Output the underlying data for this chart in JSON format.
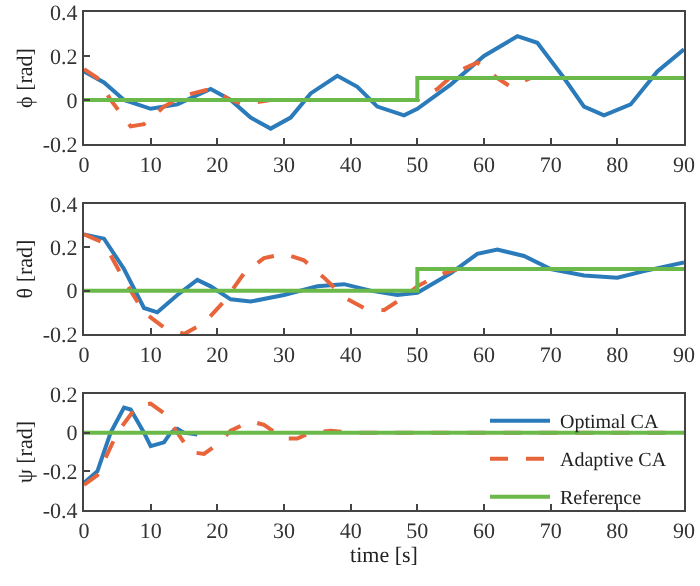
{
  "chart_data": [
    {
      "type": "line",
      "ylabel": "ϕ [rad]",
      "xlim": [
        0,
        90
      ],
      "xticks": [
        0,
        10,
        20,
        30,
        40,
        50,
        60,
        70,
        80,
        90
      ],
      "ylim": [
        -0.2,
        0.4
      ],
      "yticks": [
        -0.2,
        0,
        0.2,
        0.4
      ],
      "grid": false,
      "legend": false,
      "series": [
        {
          "color": "#2b7bba",
          "line_style": "solid",
          "x": [
            0,
            3,
            6,
            10,
            14,
            19,
            22,
            25,
            28,
            31,
            34,
            38,
            41,
            44,
            48,
            50,
            55,
            60,
            65,
            68,
            72,
            75,
            78,
            82,
            86,
            90
          ],
          "values": [
            0.13,
            0.08,
            0.0,
            -0.04,
            -0.02,
            0.05,
            0.0,
            -0.08,
            -0.13,
            -0.08,
            0.03,
            0.11,
            0.06,
            -0.03,
            -0.07,
            -0.04,
            0.07,
            0.2,
            0.29,
            0.26,
            0.1,
            -0.03,
            -0.07,
            -0.02,
            0.13,
            0.23
          ]
        },
        {
          "color": "#e8643a",
          "line_style": "dashed",
          "x": [
            0,
            2,
            4,
            7,
            9,
            12,
            15,
            19,
            22,
            24,
            28,
            50,
            53,
            56,
            59,
            62,
            64,
            67
          ],
          "values": [
            0.14,
            0.1,
            0.0,
            -0.12,
            -0.11,
            -0.03,
            0.02,
            0.05,
            0.0,
            -0.02,
            0.0,
            0.0,
            0.05,
            0.13,
            0.17,
            0.1,
            0.06,
            0.1
          ]
        },
        {
          "color": "#6ab94a",
          "line_style": "solid",
          "x": [
            0,
            50,
            50,
            90
          ],
          "values": [
            0,
            0,
            0.1,
            0.1
          ]
        }
      ]
    },
    {
      "type": "line",
      "ylabel": "θ [rad]",
      "xlim": [
        0,
        90
      ],
      "xticks": [
        0,
        10,
        20,
        30,
        40,
        50,
        60,
        70,
        80,
        90
      ],
      "ylim": [
        -0.2,
        0.4
      ],
      "yticks": [
        -0.2,
        0,
        0.2,
        0.4
      ],
      "grid": false,
      "legend": false,
      "series": [
        {
          "color": "#2b7bba",
          "line_style": "solid",
          "x": [
            0,
            3,
            6,
            9,
            11,
            14,
            17,
            19,
            22,
            25,
            30,
            35,
            39,
            43,
            47,
            50,
            55,
            59,
            62,
            66,
            70,
            75,
            80,
            84,
            90
          ],
          "values": [
            0.26,
            0.24,
            0.1,
            -0.08,
            -0.1,
            -0.02,
            0.05,
            0.02,
            -0.04,
            -0.05,
            -0.02,
            0.02,
            0.03,
            0.0,
            -0.02,
            -0.01,
            0.08,
            0.17,
            0.19,
            0.16,
            0.1,
            0.07,
            0.06,
            0.09,
            0.13
          ]
        },
        {
          "color": "#e8643a",
          "line_style": "dashed",
          "x": [
            0,
            3,
            6,
            9,
            12,
            15,
            18,
            21,
            24,
            27,
            30,
            33,
            36,
            39,
            42,
            45,
            48,
            50,
            53,
            56
          ],
          "values": [
            0.26,
            0.22,
            0.05,
            -0.1,
            -0.17,
            -0.2,
            -0.15,
            -0.05,
            0.08,
            0.15,
            0.17,
            0.14,
            0.06,
            -0.03,
            -0.08,
            -0.09,
            -0.03,
            0.02,
            0.07,
            0.1
          ]
        },
        {
          "color": "#6ab94a",
          "line_style": "solid",
          "x": [
            0,
            50,
            50,
            90
          ],
          "values": [
            0,
            0,
            0.1,
            0.1
          ]
        }
      ]
    },
    {
      "type": "line",
      "ylabel": "ψ [rad]",
      "xlabel": "time [s]",
      "xlim": [
        0,
        90
      ],
      "xticks": [
        0,
        10,
        20,
        30,
        40,
        50,
        60,
        70,
        80,
        90
      ],
      "ylim": [
        -0.4,
        0.2
      ],
      "yticks": [
        -0.4,
        -0.2,
        0,
        0.2
      ],
      "grid": false,
      "legend": "bottom right",
      "series": [
        {
          "name": "Optimal CA",
          "color": "#2b7bba",
          "line_style": "solid",
          "x": [
            0,
            2,
            4,
            6,
            7,
            9,
            10,
            12,
            13,
            14,
            15,
            17
          ],
          "values": [
            -0.26,
            -0.2,
            0.0,
            0.13,
            0.12,
            0.0,
            -0.07,
            -0.05,
            0.0,
            0.02,
            0.0,
            -0.01
          ]
        },
        {
          "name": "Adaptive CA",
          "color": "#e8643a",
          "line_style": "dashed",
          "x": [
            0,
            2,
            5,
            8,
            10,
            12,
            14,
            16,
            18,
            20,
            22,
            25,
            27,
            30,
            32,
            34,
            37,
            40,
            90
          ],
          "values": [
            -0.27,
            -0.22,
            0.0,
            0.14,
            0.15,
            0.1,
            0.0,
            -0.1,
            -0.11,
            -0.06,
            0.01,
            0.06,
            0.04,
            -0.03,
            -0.03,
            0.0,
            0.01,
            0,
            0
          ]
        },
        {
          "name": "Reference",
          "color": "#6ab94a",
          "line_style": "solid",
          "x": [
            0,
            90
          ],
          "values": [
            0,
            0
          ]
        }
      ]
    }
  ]
}
